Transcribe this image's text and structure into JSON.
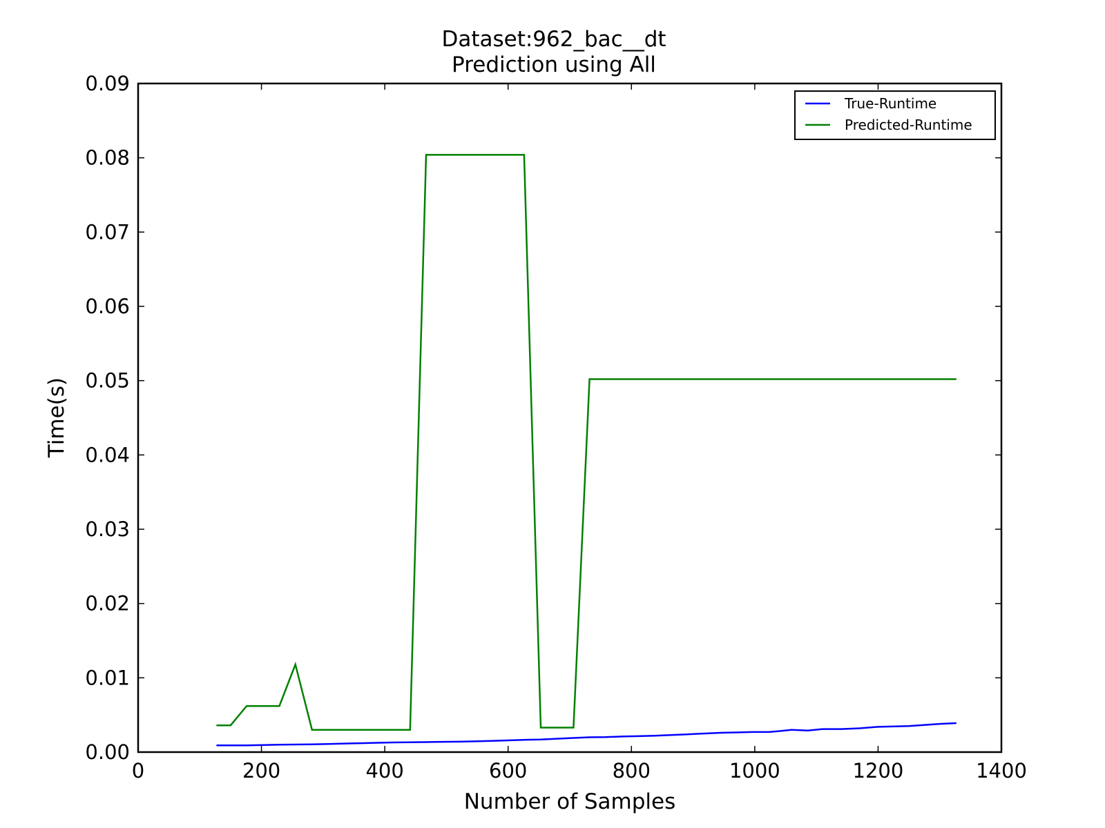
{
  "chart_data": {
    "type": "line",
    "title": "Dataset:962_bac__dt",
    "subtitle": "Prediction using All",
    "xlabel": "Number of Samples",
    "ylabel": "Time(s)",
    "xlim": [
      0,
      1400
    ],
    "ylim": [
      0,
      0.09
    ],
    "xticks": [
      "0",
      "200",
      "400",
      "600",
      "800",
      "1000",
      "1200",
      "1400"
    ],
    "yticks": [
      "0.00",
      "0.01",
      "0.02",
      "0.03",
      "0.04",
      "0.05",
      "0.06",
      "0.07",
      "0.08",
      "0.09"
    ],
    "grid": false,
    "legend_position": "top-right",
    "series": [
      {
        "name": "True-Runtime",
        "color": "#0000ff",
        "x": [
          127,
          150,
          176,
          203,
          229,
          255,
          282,
          308,
          335,
          361,
          388,
          414,
          441,
          467,
          494,
          520,
          547,
          573,
          600,
          626,
          653,
          679,
          706,
          732,
          758,
          785,
          811,
          838,
          864,
          891,
          917,
          944,
          970,
          997,
          1023,
          1036,
          1060,
          1086,
          1110,
          1140,
          1170,
          1200,
          1250,
          1300,
          1327
        ],
        "y": [
          0.0009,
          0.0009,
          0.0009,
          0.00095,
          0.001,
          0.00102,
          0.00105,
          0.0011,
          0.00115,
          0.0012,
          0.00125,
          0.0013,
          0.00132,
          0.00135,
          0.00138,
          0.0014,
          0.00145,
          0.0015,
          0.00158,
          0.00165,
          0.0017,
          0.0018,
          0.0019,
          0.002,
          0.00202,
          0.0021,
          0.00215,
          0.0022,
          0.0023,
          0.0024,
          0.0025,
          0.0026,
          0.00265,
          0.0027,
          0.0027,
          0.0028,
          0.003,
          0.0029,
          0.0031,
          0.0031,
          0.0032,
          0.0034,
          0.0035,
          0.0038,
          0.0039
        ]
      },
      {
        "name": "Predicted-Runtime",
        "color": "#008000",
        "x": [
          127,
          150,
          176,
          229,
          255,
          282,
          441,
          467,
          626,
          653,
          706,
          732,
          1327
        ],
        "y": [
          0.0036,
          0.0036,
          0.0062,
          0.0062,
          0.0118,
          0.003,
          0.003,
          0.0804,
          0.0804,
          0.0033,
          0.0033,
          0.0502,
          0.0502
        ]
      }
    ]
  }
}
